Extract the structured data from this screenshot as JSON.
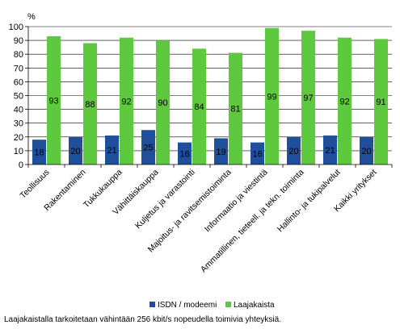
{
  "chart_data": {
    "type": "bar",
    "unit_label": "%",
    "ylim": [
      0,
      100
    ],
    "yticks": [
      0,
      10,
      20,
      30,
      40,
      50,
      60,
      70,
      80,
      90,
      100
    ],
    "grid": true,
    "legend_placement": "bottom",
    "categories": [
      "Teollisuus",
      "Rakentaminen",
      "Tukkukauppa",
      "Vähittäiskauppa",
      "Kuljetus ja varastointi",
      "Majoitus- ja ravitsemistoiminta",
      "Informaatio ja viestintä",
      "Ammatillinen, tieteell. ja tekn. toiminta",
      "Hallinto- ja tukipalvelut",
      "Kaikki yritykset"
    ],
    "series": [
      {
        "name": "ISDN / modeemi",
        "color": "#1f4e9a",
        "values": [
          18,
          20,
          21,
          25,
          16,
          19,
          16,
          20,
          21,
          20
        ]
      },
      {
        "name": "Laajakaista",
        "color": "#5ec83f",
        "values": [
          93,
          88,
          92,
          90,
          84,
          81,
          99,
          97,
          92,
          91
        ]
      }
    ]
  },
  "footnote": "Laajakaistalla tarkoitetaan vähintään 256 kbit/s nopeudella toimivia yhteyksiä."
}
